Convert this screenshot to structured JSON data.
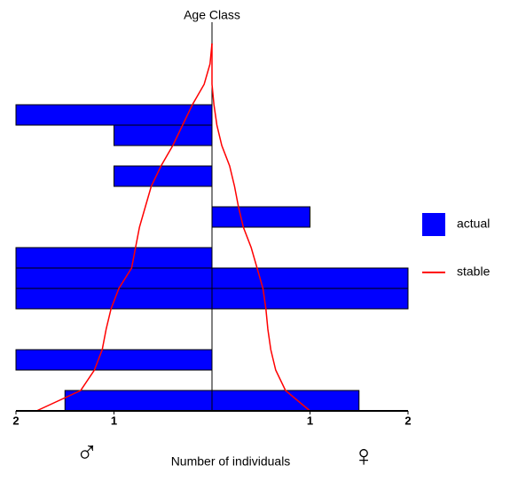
{
  "chart_data": {
    "type": "pyramid",
    "title": "Age Class",
    "x_label": "Number of individuals",
    "left_symbol": "♂",
    "right_symbol": "♀",
    "categories": [
      null,
      null,
      null,
      null,
      null,
      null,
      null,
      null,
      null,
      null,
      null,
      null,
      null,
      null,
      null,
      null,
      null,
      null,
      null
    ],
    "xlim": [
      0,
      2
    ],
    "left_ticks": [
      2,
      1
    ],
    "right_ticks": [
      1,
      2
    ],
    "legend": "right",
    "series": [
      {
        "name": "actual",
        "color": "#0000ff",
        "kind": "bar",
        "left": [
          1.5,
          0,
          2,
          0,
          0,
          2,
          2,
          2,
          0,
          0,
          0,
          1,
          0,
          1,
          2,
          0,
          0,
          0,
          0
        ],
        "right": [
          1.5,
          0,
          0,
          0,
          0,
          2,
          2,
          0,
          0,
          1,
          0,
          0,
          0,
          0,
          0,
          0,
          0,
          0,
          0
        ]
      },
      {
        "name": "stable",
        "color": "#ff0000",
        "kind": "line",
        "left": [
          1.79,
          1.34,
          1.2,
          1.12,
          1.08,
          1.03,
          0.95,
          0.82,
          0.78,
          0.74,
          0.68,
          0.62,
          0.52,
          0.4,
          0.3,
          0.2,
          0.08,
          0.02,
          0
        ],
        "right": [
          1.0,
          0.75,
          0.65,
          0.6,
          0.57,
          0.55,
          0.52,
          0.46,
          0.4,
          0.32,
          0.27,
          0.23,
          0.18,
          0.1,
          0.05,
          0.02,
          0,
          0,
          0
        ]
      }
    ]
  }
}
